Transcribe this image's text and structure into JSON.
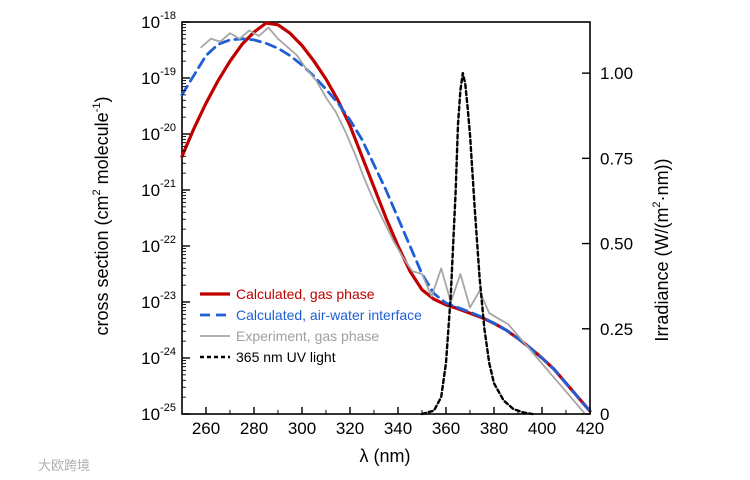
{
  "chart_data": {
    "type": "line",
    "xlabel": "λ (nm)",
    "ylabel_left": {
      "prefix": "cross section (cm",
      "sup1": "2",
      "mid": " molecule",
      "sup2": "-1",
      "suffix": ")"
    },
    "ylabel_right": {
      "prefix": "Irradiance (W/(m",
      "sup": "2",
      "suffix": "·nm))"
    },
    "xlim": [
      250,
      420
    ],
    "ylim_left_log10": [
      -25,
      -18
    ],
    "ylim_right": [
      0,
      1.15
    ],
    "left_scale": "log",
    "grid": false,
    "legend_placement": "lower-left",
    "x_ticks": [
      "260",
      "280",
      "300",
      "320",
      "340",
      "360",
      "380",
      "400",
      "420"
    ],
    "left_ticks": [
      {
        "base": "10",
        "exp": "-18"
      },
      {
        "base": "10",
        "exp": "-19"
      },
      {
        "base": "10",
        "exp": "-20"
      },
      {
        "base": "10",
        "exp": "-21"
      },
      {
        "base": "10",
        "exp": "-22"
      },
      {
        "base": "10",
        "exp": "-23"
      },
      {
        "base": "10",
        "exp": "-24"
      },
      {
        "base": "10",
        "exp": "-25"
      }
    ],
    "right_ticks": [
      "1.00",
      "0.75",
      "0.50",
      "0.25",
      "0"
    ],
    "series": [
      {
        "name": "Calculated, gas phase",
        "axis": "left",
        "color": "#c00000",
        "dash": "solid",
        "x": [
          250,
          255,
          260,
          265,
          270,
          275,
          280,
          285,
          290,
          295,
          300,
          305,
          310,
          315,
          320,
          325,
          330,
          335,
          340,
          345,
          350,
          355,
          360,
          365,
          370,
          375,
          380,
          385,
          390,
          395,
          400,
          405,
          410,
          415,
          420
        ],
        "log10_y": [
          -20.4,
          -19.9,
          -19.45,
          -19.05,
          -18.7,
          -18.4,
          -18.18,
          -18.02,
          -18.05,
          -18.2,
          -18.42,
          -18.7,
          -19.02,
          -19.4,
          -19.85,
          -20.4,
          -20.95,
          -21.5,
          -22.0,
          -22.45,
          -22.78,
          -22.95,
          -23.05,
          -23.12,
          -23.2,
          -23.28,
          -23.38,
          -23.5,
          -23.65,
          -23.82,
          -24.0,
          -24.2,
          -24.45,
          -24.7,
          -24.95
        ]
      },
      {
        "name": "Calculated, air-water interface",
        "axis": "left",
        "color": "#1f5fd6",
        "dash": "dashed",
        "x": [
          250,
          255,
          260,
          265,
          270,
          275,
          280,
          285,
          290,
          295,
          300,
          305,
          310,
          315,
          320,
          325,
          330,
          335,
          340,
          345,
          350,
          355,
          360,
          365,
          370,
          375,
          380,
          385,
          390,
          395,
          400,
          405,
          410,
          415,
          420
        ],
        "log10_y": [
          -19.3,
          -18.95,
          -18.6,
          -18.4,
          -18.32,
          -18.3,
          -18.32,
          -18.38,
          -18.47,
          -18.6,
          -18.77,
          -18.97,
          -19.2,
          -19.45,
          -19.75,
          -20.1,
          -20.55,
          -21.0,
          -21.5,
          -22.0,
          -22.5,
          -22.85,
          -23.02,
          -23.1,
          -23.18,
          -23.27,
          -23.38,
          -23.5,
          -23.65,
          -23.82,
          -24.0,
          -24.2,
          -24.45,
          -24.7,
          -24.95
        ]
      },
      {
        "name": "Experiment, gas phase",
        "axis": "left",
        "color": "#a6a6a6",
        "dash": "solid",
        "x": [
          258,
          262,
          266,
          270,
          274,
          278,
          282,
          286,
          290,
          294,
          298,
          302,
          306,
          310,
          314,
          318,
          322,
          326,
          330,
          334,
          338,
          342,
          346,
          350,
          354,
          358,
          362,
          366,
          370,
          374,
          378,
          382,
          386,
          390,
          394,
          398,
          402,
          406,
          410,
          414,
          418
        ],
        "log10_y": [
          -18.45,
          -18.3,
          -18.35,
          -18.2,
          -18.3,
          -18.15,
          -18.25,
          -18.1,
          -18.3,
          -18.45,
          -18.6,
          -18.85,
          -19.05,
          -19.35,
          -19.6,
          -19.95,
          -20.35,
          -20.8,
          -21.2,
          -21.55,
          -21.9,
          -22.2,
          -22.45,
          -22.5,
          -22.9,
          -22.4,
          -23.0,
          -22.5,
          -23.1,
          -22.8,
          -23.2,
          -23.3,
          -23.4,
          -23.6,
          -23.8,
          -24.0,
          -24.2,
          -24.4,
          -24.6,
          -24.8,
          -25.0
        ]
      },
      {
        "name": "365 nm UV light",
        "axis": "right",
        "color": "#000000",
        "dash": "dotted",
        "x": [
          350,
          355,
          358,
          360,
          362,
          364,
          365,
          366,
          367,
          368,
          369,
          370,
          372,
          374,
          376,
          378,
          380,
          384,
          388,
          392,
          396
        ],
        "y": [
          0.0,
          0.01,
          0.05,
          0.15,
          0.35,
          0.65,
          0.85,
          0.95,
          1.0,
          0.97,
          0.9,
          0.82,
          0.6,
          0.4,
          0.25,
          0.15,
          0.09,
          0.04,
          0.015,
          0.005,
          0.0
        ]
      }
    ]
  },
  "watermark": "大欧跨境"
}
